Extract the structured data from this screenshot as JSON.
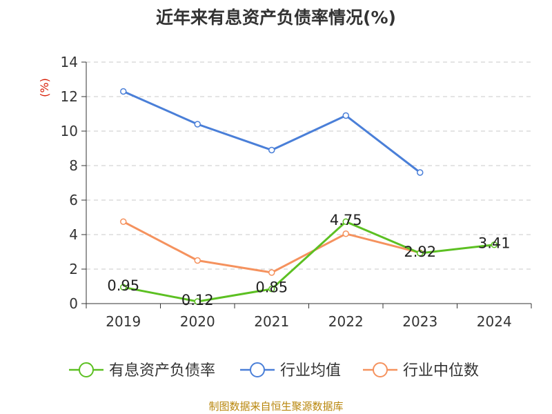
{
  "title": "近年来有息资产负债率情况(%)",
  "source": "制图数据来自恒生聚源数据库",
  "colors": {
    "debt_ratio": "#5cc022",
    "industry_avg": "#4a7fd8",
    "industry_median": "#f5925e"
  },
  "chart_data": {
    "type": "line",
    "title": "近年来有息资产负债率情况(%)",
    "unit_label": "(%)",
    "xlabel": "",
    "ylabel": "(%)",
    "categories": [
      "2019",
      "2020",
      "2021",
      "2022",
      "2023",
      "2024"
    ],
    "ylim": [
      0,
      14
    ],
    "yticks": [
      0,
      2,
      4,
      6,
      8,
      10,
      12,
      14
    ],
    "grid": true,
    "legend_position": "bottom",
    "series": [
      {
        "name": "有息资产负债率",
        "color_key": "debt_ratio",
        "values": [
          0.95,
          0.12,
          0.85,
          4.75,
          2.92,
          3.41
        ],
        "labels": [
          "0.95",
          "0.12",
          "0.85",
          "4.75",
          "2.92",
          "3.41"
        ]
      },
      {
        "name": "行业均值",
        "color_key": "industry_avg",
        "values": [
          12.3,
          10.4,
          8.9,
          10.9,
          7.6,
          null
        ]
      },
      {
        "name": "行业中位数",
        "color_key": "industry_median",
        "values": [
          4.75,
          2.5,
          1.8,
          4.05,
          2.95,
          null
        ]
      }
    ]
  }
}
